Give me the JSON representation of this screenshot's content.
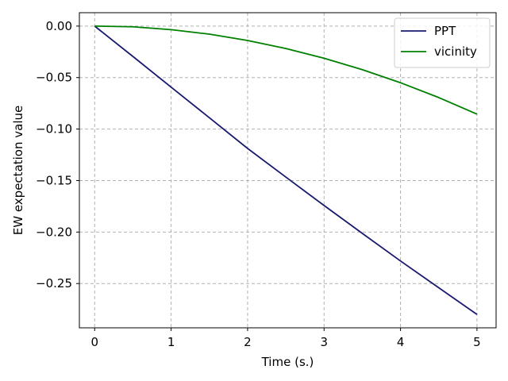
{
  "chart_data": {
    "type": "line",
    "title": "",
    "xlabel": "Time (s.)",
    "ylabel": "EW expectation value",
    "xlim": [
      -0.2,
      5.25
    ],
    "ylim": [
      -0.293,
      0.013
    ],
    "xticks": [
      0,
      1,
      2,
      3,
      4,
      5
    ],
    "xtick_labels": [
      "0",
      "1",
      "2",
      "3",
      "4",
      "5"
    ],
    "yticks": [
      0.0,
      -0.05,
      -0.1,
      -0.15,
      -0.2,
      -0.25
    ],
    "ytick_labels": [
      "0.00",
      "−0.05",
      "−0.10",
      "−0.15",
      "−0.20",
      "−0.25"
    ],
    "grid": true,
    "legend_position": "top-right",
    "series": [
      {
        "name": "PPT",
        "color": "#191970",
        "x": [
          0,
          0.5,
          1,
          1.5,
          2,
          2.5,
          3,
          3.5,
          4,
          4.5,
          5
        ],
        "y": [
          0,
          -0.0295,
          -0.0593,
          -0.089,
          -0.1188,
          -0.1466,
          -0.1742,
          -0.2013,
          -0.2281,
          -0.2541,
          -0.28
        ]
      },
      {
        "name": "vicinity",
        "color": "#008000",
        "x": [
          0,
          0.5,
          1,
          1.5,
          2,
          2.5,
          3,
          3.5,
          4,
          4.5,
          5
        ],
        "y": [
          0,
          -0.0007,
          -0.0035,
          -0.0078,
          -0.014,
          -0.0218,
          -0.0312,
          -0.0423,
          -0.055,
          -0.0694,
          -0.0855
        ]
      }
    ]
  }
}
